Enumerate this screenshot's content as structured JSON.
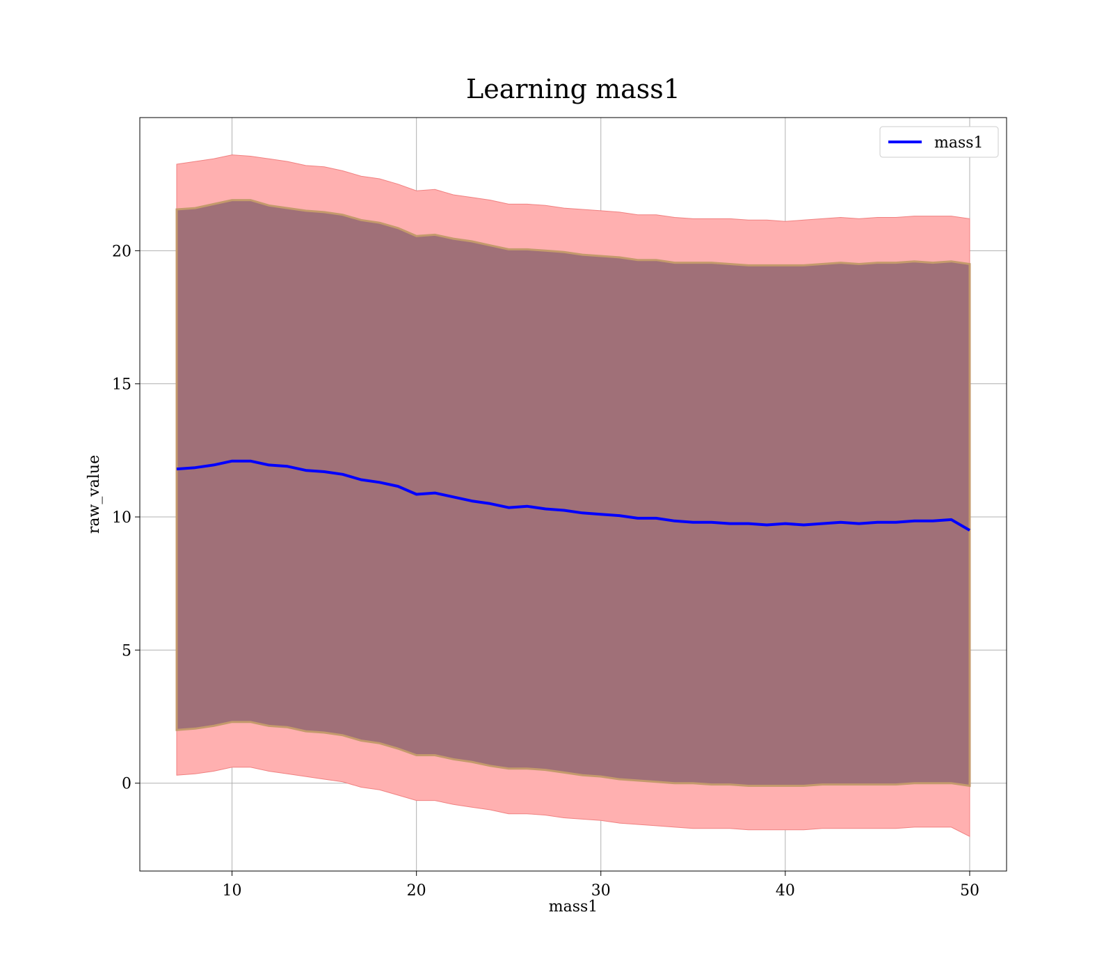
{
  "chart_data": {
    "type": "area",
    "title": "Learning mass1",
    "xlabel": "mass1",
    "ylabel": "raw_value",
    "xlim": [
      5,
      52
    ],
    "ylim": [
      -3.3,
      25
    ],
    "xticks": [
      10,
      20,
      30,
      40,
      50
    ],
    "yticks": [
      0,
      5,
      10,
      15,
      20
    ],
    "grid": true,
    "legend": {
      "placement": "top-right",
      "entries": [
        "mass1"
      ]
    },
    "colors": {
      "line": "#0000ff",
      "outer_band": "#ffb0b0",
      "outer_band_edge": "#f08080",
      "inner_band": "#a07078",
      "inner_band_edge": "#c49a6c"
    },
    "x": [
      7,
      8,
      9,
      10,
      11,
      12,
      13,
      14,
      15,
      16,
      17,
      18,
      19,
      20,
      21,
      22,
      23,
      24,
      25,
      26,
      27,
      28,
      29,
      30,
      31,
      32,
      33,
      34,
      35,
      36,
      37,
      38,
      39,
      40,
      41,
      42,
      43,
      44,
      45,
      46,
      47,
      48,
      49,
      50
    ],
    "series": [
      {
        "name": "mass1",
        "values": [
          11.8,
          11.85,
          11.95,
          12.1,
          12.1,
          11.95,
          11.9,
          11.75,
          11.7,
          11.6,
          11.4,
          11.3,
          11.15,
          10.85,
          10.9,
          10.75,
          10.6,
          10.5,
          10.35,
          10.4,
          10.3,
          10.25,
          10.15,
          10.1,
          10.05,
          9.95,
          9.95,
          9.85,
          9.8,
          9.8,
          9.75,
          9.75,
          9.7,
          9.75,
          9.7,
          9.75,
          9.8,
          9.75,
          9.8,
          9.8,
          9.85,
          9.85,
          9.9,
          9.5
        ]
      }
    ],
    "inner_band": {
      "upper": [
        21.55,
        21.6,
        21.75,
        21.9,
        21.9,
        21.7,
        21.6,
        21.5,
        21.45,
        21.35,
        21.15,
        21.05,
        20.85,
        20.55,
        20.6,
        20.45,
        20.35,
        20.2,
        20.05,
        20.05,
        20.0,
        19.95,
        19.85,
        19.8,
        19.75,
        19.65,
        19.65,
        19.55,
        19.55,
        19.55,
        19.5,
        19.45,
        19.45,
        19.45,
        19.45,
        19.5,
        19.55,
        19.5,
        19.55,
        19.55,
        19.6,
        19.55,
        19.6,
        19.5
      ],
      "lower": [
        2.0,
        2.05,
        2.15,
        2.3,
        2.3,
        2.15,
        2.1,
        1.95,
        1.9,
        1.8,
        1.6,
        1.5,
        1.3,
        1.05,
        1.05,
        0.9,
        0.8,
        0.65,
        0.55,
        0.55,
        0.5,
        0.4,
        0.3,
        0.25,
        0.15,
        0.1,
        0.05,
        0.0,
        0.0,
        -0.05,
        -0.05,
        -0.1,
        -0.1,
        -0.1,
        -0.1,
        -0.05,
        -0.05,
        -0.05,
        -0.05,
        -0.05,
        0.0,
        0.0,
        0.0,
        -0.1
      ]
    },
    "outer_band": {
      "upper": [
        23.25,
        23.35,
        23.45,
        23.6,
        23.55,
        23.45,
        23.35,
        23.2,
        23.15,
        23.0,
        22.8,
        22.7,
        22.5,
        22.25,
        22.3,
        22.1,
        22.0,
        21.9,
        21.75,
        21.75,
        21.7,
        21.6,
        21.55,
        21.5,
        21.45,
        21.35,
        21.35,
        21.25,
        21.2,
        21.2,
        21.2,
        21.15,
        21.15,
        21.1,
        21.15,
        21.2,
        21.25,
        21.2,
        21.25,
        21.25,
        21.3,
        21.3,
        21.3,
        21.2
      ],
      "lower": [
        0.3,
        0.35,
        0.45,
        0.6,
        0.6,
        0.45,
        0.35,
        0.25,
        0.15,
        0.05,
        -0.15,
        -0.25,
        -0.45,
        -0.65,
        -0.65,
        -0.8,
        -0.9,
        -1.0,
        -1.15,
        -1.15,
        -1.2,
        -1.3,
        -1.35,
        -1.4,
        -1.5,
        -1.55,
        -1.6,
        -1.65,
        -1.7,
        -1.7,
        -1.7,
        -1.75,
        -1.75,
        -1.75,
        -1.75,
        -1.7,
        -1.7,
        -1.7,
        -1.7,
        -1.7,
        -1.65,
        -1.65,
        -1.65,
        -2.0
      ]
    }
  }
}
